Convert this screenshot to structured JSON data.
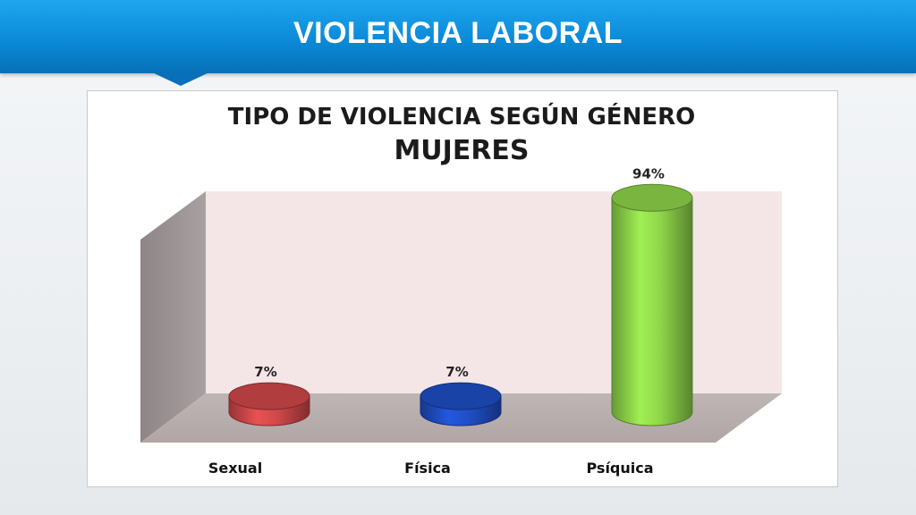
{
  "header": {
    "title": "VIOLENCIA LABORAL"
  },
  "chart_data": {
    "type": "bar",
    "title": "TIPO DE VIOLENCIA  SEGÚN GÉNERO",
    "subtitle": "MUJERES",
    "categories": [
      "Sexual",
      "Física",
      "Psíquica"
    ],
    "values": [
      7,
      7,
      94
    ],
    "data_labels": [
      "7%",
      "7%",
      "94%"
    ],
    "ylim": [
      0,
      100
    ],
    "colors": [
      "#d0484a",
      "#1f4fc6",
      "#8fd64a"
    ],
    "shape": "3d-cylinder",
    "legend": false,
    "grid": false
  }
}
